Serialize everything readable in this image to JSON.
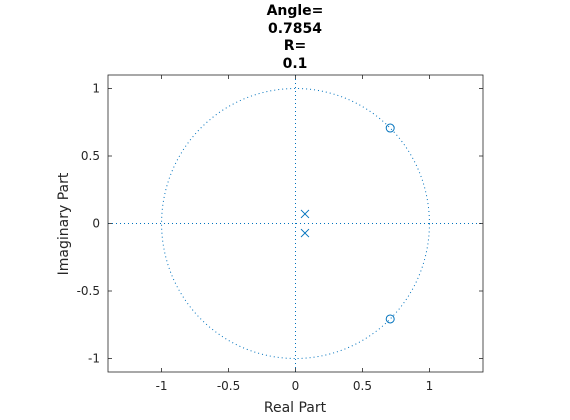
{
  "chart_data": {
    "type": "scatter",
    "subtype": "pole-zero plot",
    "title_lines": [
      "Angle=",
      "0.7854",
      "R=",
      "0.1"
    ],
    "xlabel": "Real Part",
    "ylabel": "Imaginary Part",
    "xlim": [
      -1.4,
      1.4
    ],
    "ylim": [
      -1.1,
      1.1
    ],
    "xticks": [
      -1,
      -0.5,
      0,
      0.5,
      1
    ],
    "yticks": [
      -1,
      -0.5,
      0,
      0.5,
      1
    ],
    "xtick_labels": [
      "-1",
      "-0.5",
      "0",
      "0.5",
      "1"
    ],
    "ytick_labels": [
      "-1",
      "-0.5",
      "0",
      "0.5",
      "1"
    ],
    "unit_circle": true,
    "grid": false,
    "zeros": [
      {
        "re": 0.7071,
        "im": 0.7071
      },
      {
        "re": 0.7071,
        "im": -0.7071
      }
    ],
    "poles": [
      {
        "re": 0.0707,
        "im": 0.0707
      },
      {
        "re": 0.0707,
        "im": -0.0707
      }
    ],
    "colors": {
      "marker": "#0072BD",
      "axes": "#262626"
    }
  }
}
